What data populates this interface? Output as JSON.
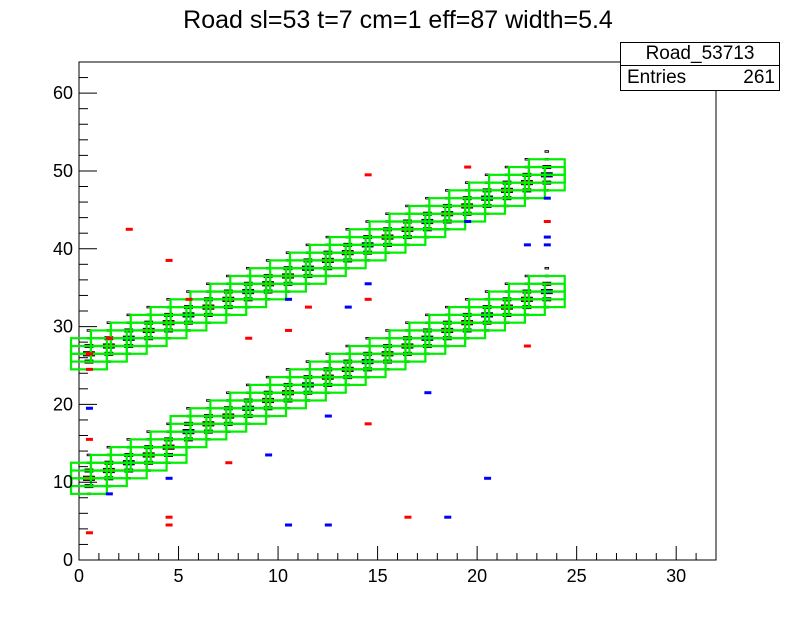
{
  "title": "Road sl=53 t=7 cm=1 eff=87 width=5.4",
  "stats": {
    "name": "Road_53713",
    "entries_label": "Entries",
    "entries_value": "261"
  },
  "colors": {
    "road": "#00ee00",
    "hit_a": "#ff0000",
    "hit_b": "#0000ff",
    "frame": "#000000"
  },
  "chart_data": {
    "type": "heatmap",
    "title": "Road sl=53 t=7 cm=1 eff=87 width=5.4",
    "xlabel": "",
    "ylabel": "",
    "xlim": [
      0,
      32
    ],
    "ylim": [
      0,
      64
    ],
    "x_ticks": [
      0,
      5,
      10,
      15,
      20,
      25,
      30
    ],
    "y_ticks": [
      0,
      10,
      20,
      30,
      40,
      50,
      60
    ],
    "grid": false,
    "legend": "top-right statistics box",
    "road_upper": [
      [
        0,
        26
      ],
      [
        1,
        27
      ],
      [
        2,
        28
      ],
      [
        3,
        29
      ],
      [
        4,
        30
      ],
      [
        5,
        31
      ],
      [
        6,
        32
      ],
      [
        7,
        33
      ],
      [
        8,
        34
      ],
      [
        9,
        35
      ],
      [
        10,
        36
      ],
      [
        11,
        37
      ],
      [
        12,
        38
      ],
      [
        13,
        39
      ],
      [
        14,
        40
      ],
      [
        15,
        41
      ],
      [
        16,
        42
      ],
      [
        17,
        43
      ],
      [
        18,
        44
      ],
      [
        19,
        45
      ],
      [
        20,
        46
      ],
      [
        21,
        47
      ],
      [
        22,
        48
      ],
      [
        23,
        49
      ]
    ],
    "road_lower": [
      [
        0,
        10
      ],
      [
        1,
        11
      ],
      [
        2,
        12
      ],
      [
        3,
        13
      ],
      [
        4,
        14
      ],
      [
        5,
        16
      ],
      [
        6,
        17
      ],
      [
        7,
        18
      ],
      [
        8,
        19
      ],
      [
        9,
        20
      ],
      [
        10,
        21
      ],
      [
        11,
        22
      ],
      [
        12,
        23
      ],
      [
        13,
        24
      ],
      [
        14,
        25
      ],
      [
        15,
        26
      ],
      [
        16,
        27
      ],
      [
        17,
        28
      ],
      [
        18,
        29
      ],
      [
        19,
        30
      ],
      [
        20,
        31
      ],
      [
        21,
        32
      ],
      [
        22,
        33
      ],
      [
        23,
        34
      ]
    ],
    "hits_red": [
      [
        0,
        24.5
      ],
      [
        0,
        26.5
      ],
      [
        0,
        15.5
      ],
      [
        0,
        3.5
      ],
      [
        1,
        28.5
      ],
      [
        2,
        42.5
      ],
      [
        4,
        38.5
      ],
      [
        4,
        5.5
      ],
      [
        4,
        4.5
      ],
      [
        5,
        33.5
      ],
      [
        7,
        12.5
      ],
      [
        8,
        28.5
      ],
      [
        10,
        29.5
      ],
      [
        11,
        32.5
      ],
      [
        14,
        49.5
      ],
      [
        14,
        33.5
      ],
      [
        14,
        17.5
      ],
      [
        16,
        5.5
      ],
      [
        19,
        50.5
      ],
      [
        23,
        43.5
      ],
      [
        22,
        27.5
      ]
    ],
    "hits_blue": [
      [
        0,
        19.5
      ],
      [
        1,
        8.5
      ],
      [
        4,
        10.5
      ],
      [
        9,
        13.5
      ],
      [
        10,
        4.5
      ],
      [
        10,
        33.5
      ],
      [
        12,
        4.5
      ],
      [
        12,
        18.5
      ],
      [
        13,
        32.5
      ],
      [
        14,
        35.5
      ],
      [
        17,
        21.5
      ],
      [
        18,
        5.5
      ],
      [
        19,
        43.5
      ],
      [
        20,
        10.5
      ],
      [
        22,
        40.5
      ],
      [
        23,
        40.5
      ],
      [
        23,
        41.5
      ],
      [
        23,
        46.5
      ]
    ]
  }
}
